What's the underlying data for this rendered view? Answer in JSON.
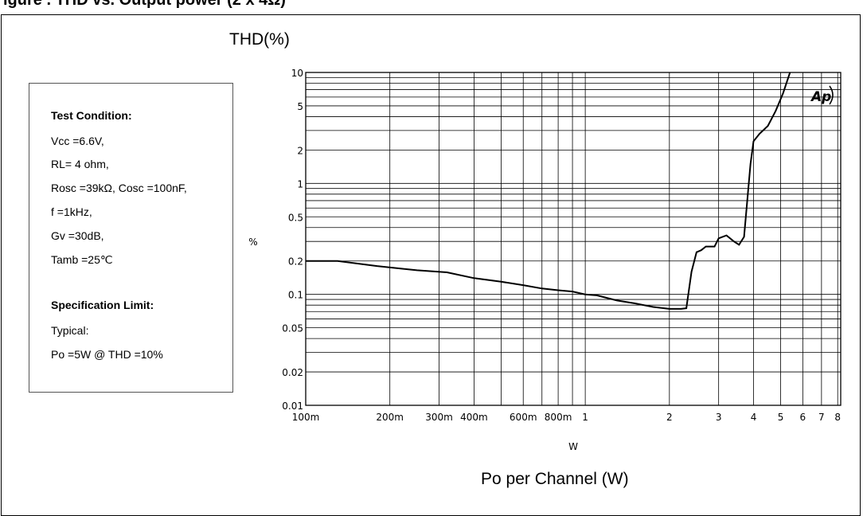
{
  "page": {
    "cut_title": "igure . THD vs. Output power (2 x 4Ω)",
    "y_axis_title": "THD(%)",
    "x_axis_title": "Po per Channel (W)"
  },
  "conditions": {
    "heading": "Test Condition:",
    "lines": [
      "Vcc =6.6V,",
      "RL= 4 ohm,",
      "Rosc =39kΩ, Cosc =100nF,",
      "f =1kHz,",
      "Gv =30dB,",
      "Tamb =25℃"
    ],
    "spec_heading": "Specification Limit:",
    "spec_lines": [
      "Typical:",
      "Po =5W @ THD =10%"
    ]
  },
  "chart_data": {
    "type": "line",
    "x_scale": "log",
    "y_scale": "log",
    "xlim": [
      0.1,
      8.2
    ],
    "ylim": [
      0.01,
      10
    ],
    "xlabel": "W",
    "ylabel": "%",
    "logo": "Ap",
    "grid": true,
    "x_ticks": [
      {
        "v": 0.1,
        "label": "100m"
      },
      {
        "v": 0.2,
        "label": "200m"
      },
      {
        "v": 0.3,
        "label": "300m"
      },
      {
        "v": 0.4,
        "label": "400m"
      },
      {
        "v": 0.6,
        "label": "600m"
      },
      {
        "v": 0.8,
        "label": "800m"
      },
      {
        "v": 1,
        "label": "1"
      },
      {
        "v": 2,
        "label": "2"
      },
      {
        "v": 3,
        "label": "3"
      },
      {
        "v": 4,
        "label": "4"
      },
      {
        "v": 5,
        "label": "5"
      },
      {
        "v": 6,
        "label": "6"
      },
      {
        "v": 7,
        "label": "7"
      },
      {
        "v": 8,
        "label": "8"
      }
    ],
    "y_ticks": [
      {
        "v": 0.01,
        "label": "0.01"
      },
      {
        "v": 0.02,
        "label": "0.02"
      },
      {
        "v": 0.05,
        "label": "0.05"
      },
      {
        "v": 0.1,
        "label": "0.1"
      },
      {
        "v": 0.2,
        "label": "0.2"
      },
      {
        "v": 0.5,
        "label": "0.5"
      },
      {
        "v": 1,
        "label": "1"
      },
      {
        "v": 2,
        "label": "2"
      },
      {
        "v": 5,
        "label": "5"
      },
      {
        "v": 10,
        "label": "10"
      }
    ],
    "series": [
      {
        "x": [
          0.1,
          0.13,
          0.18,
          0.25,
          0.32,
          0.4,
          0.5,
          0.6,
          0.7,
          0.8,
          0.9,
          1.0,
          1.1,
          1.3,
          1.5,
          1.75,
          2.0,
          2.2,
          2.3,
          2.4,
          2.5,
          2.6,
          2.7,
          2.9,
          3.0,
          3.2,
          3.4,
          3.55,
          3.7,
          3.9,
          4.0,
          4.2,
          4.5,
          4.8,
          5.1,
          5.4
        ],
        "y": [
          0.2,
          0.2,
          0.18,
          0.165,
          0.158,
          0.14,
          0.13,
          0.121,
          0.113,
          0.109,
          0.106,
          0.1,
          0.098,
          0.088,
          0.083,
          0.077,
          0.074,
          0.074,
          0.075,
          0.16,
          0.24,
          0.25,
          0.27,
          0.27,
          0.32,
          0.34,
          0.3,
          0.28,
          0.33,
          1.5,
          2.4,
          2.8,
          3.3,
          4.5,
          6.5,
          10
        ]
      }
    ]
  }
}
